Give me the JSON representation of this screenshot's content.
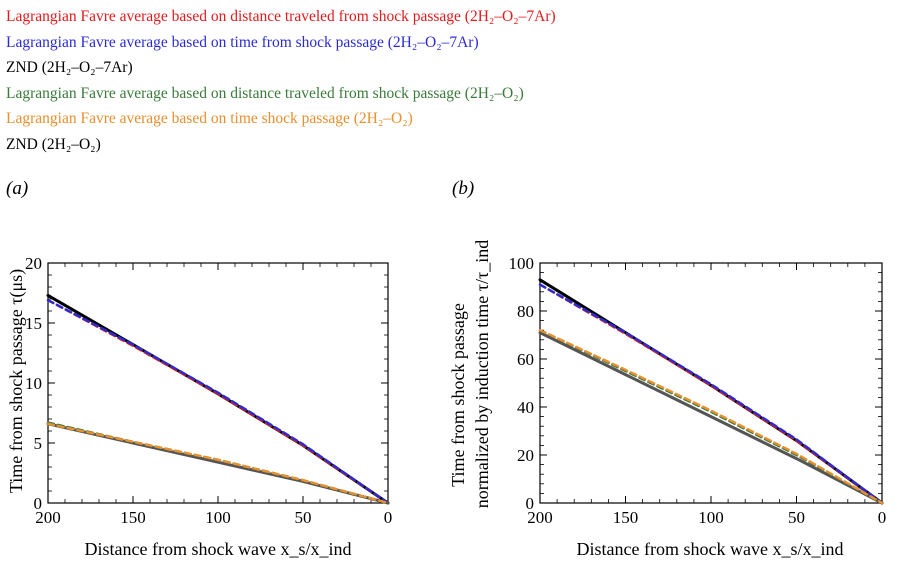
{
  "legend": [
    {
      "text": "Lagrangian Favre average based on distance traveled from shock passage (2H₂–O₂–7Ar)",
      "color": "#e31a1c"
    },
    {
      "text": "Lagrangian Favre average based on time from shock passage (2H₂–O₂–7Ar)",
      "color": "#2b2bd6"
    },
    {
      "text": "ZND (2H₂–O₂–7Ar)",
      "color": "#000000"
    },
    {
      "text": "Lagrangian Favre average based on distance traveled from shock passage (2H₂–O₂)",
      "color": "#3a7a3a"
    },
    {
      "text": "Lagrangian Favre average based on time shock passage (2H₂–O₂)",
      "color": "#e88f2e"
    },
    {
      "text": "ZND (2H₂–O₂)",
      "color": "#000000"
    }
  ],
  "chart_data": [
    {
      "type": "line",
      "panel": "(a)",
      "xlabel": "Distance from shock wave x_s/x_ind",
      "ylabel": "Time from shock passage τ(μs)",
      "xlim": [
        200,
        0
      ],
      "ylim": [
        0,
        20
      ],
      "xticks": [
        200,
        150,
        100,
        50,
        0
      ],
      "yticks": [
        0,
        5,
        10,
        15,
        20
      ],
      "series": [
        {
          "color": "#000000",
          "style": "solid",
          "x": [
            200,
            150,
            100,
            50,
            0
          ],
          "y": [
            17.3,
            13.2,
            9.1,
            4.8,
            0
          ]
        },
        {
          "color": "#e31a1c",
          "style": "dashed",
          "x": [
            200,
            150,
            100,
            50,
            0
          ],
          "y": [
            16.9,
            13.1,
            9.1,
            4.8,
            0
          ]
        },
        {
          "color": "#2b2bd6",
          "style": "dashed",
          "x": [
            200,
            150,
            100,
            50,
            0
          ],
          "y": [
            16.9,
            13.2,
            9.2,
            4.9,
            0
          ]
        },
        {
          "color": "#555555",
          "style": "solid",
          "x": [
            200,
            150,
            100,
            50,
            0
          ],
          "y": [
            6.6,
            5.0,
            3.4,
            1.8,
            0
          ]
        },
        {
          "color": "#3a7a3a",
          "style": "dashed",
          "x": [
            200,
            150,
            100,
            50,
            0
          ],
          "y": [
            6.7,
            5.1,
            3.6,
            1.9,
            0
          ]
        },
        {
          "color": "#e88f2e",
          "style": "dashed",
          "x": [
            200,
            150,
            100,
            50,
            0
          ],
          "y": [
            6.6,
            5.1,
            3.6,
            1.9,
            0
          ]
        }
      ]
    },
    {
      "type": "line",
      "panel": "(b)",
      "xlabel": "Distance from shock wave x_s/x_ind",
      "ylabel": "Time from shock passage normalized by induction time τ/τ_ind",
      "xlim": [
        200,
        0
      ],
      "ylim": [
        0,
        100
      ],
      "xticks": [
        200,
        150,
        100,
        50,
        0
      ],
      "yticks": [
        0,
        20,
        40,
        60,
        80,
        100
      ],
      "series": [
        {
          "color": "#000000",
          "style": "solid",
          "x": [
            200,
            150,
            100,
            50,
            0
          ],
          "y": [
            93,
            71,
            49,
            26,
            0
          ]
        },
        {
          "color": "#e31a1c",
          "style": "dashed",
          "x": [
            200,
            150,
            100,
            50,
            0
          ],
          "y": [
            91,
            70.5,
            49,
            26,
            0
          ]
        },
        {
          "color": "#2b2bd6",
          "style": "dashed",
          "x": [
            200,
            150,
            100,
            50,
            0
          ],
          "y": [
            91,
            71,
            49.5,
            26.5,
            0
          ]
        },
        {
          "color": "#555555",
          "style": "solid",
          "x": [
            200,
            150,
            100,
            50,
            0
          ],
          "y": [
            71,
            53.5,
            36,
            18.5,
            0
          ]
        },
        {
          "color": "#3a7a3a",
          "style": "dashed",
          "x": [
            200,
            150,
            100,
            50,
            0
          ],
          "y": [
            72,
            55,
            38,
            20,
            0
          ]
        },
        {
          "color": "#e88f2e",
          "style": "dashed",
          "x": [
            200,
            150,
            100,
            50,
            0
          ],
          "y": [
            72,
            55.5,
            38.5,
            20.5,
            0
          ]
        }
      ]
    }
  ]
}
